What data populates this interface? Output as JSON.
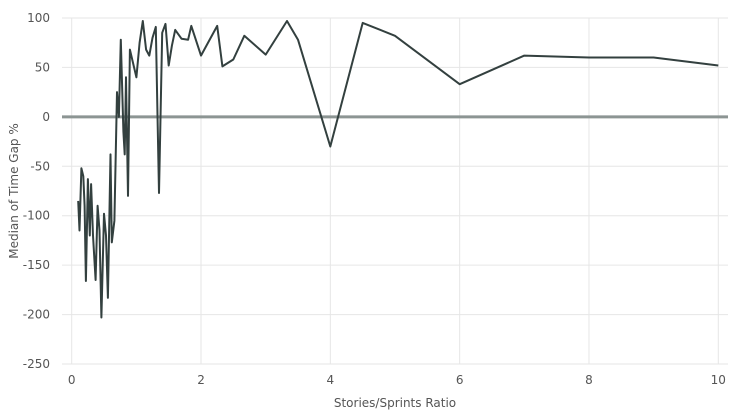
{
  "chart_data": {
    "type": "line",
    "xlabel": "Stories/Sprints Ratio",
    "ylabel": "Median of Time Gap %",
    "xlim": [
      -0.15,
      10.15
    ],
    "ylim": [
      -250,
      100
    ],
    "x_ticks": [
      0,
      2,
      4,
      6,
      8,
      10
    ],
    "y_ticks": [
      100,
      50,
      0,
      -50,
      -100,
      -150,
      -200,
      -250
    ],
    "x_tick_labels": [
      "0",
      "2",
      "4",
      "6",
      "8",
      "10"
    ],
    "y_tick_labels": [
      "100",
      "50",
      "0",
      "-50",
      "-100",
      "-150",
      "-200",
      "-250"
    ],
    "reference_line_y": 0,
    "grid": true,
    "colors": {
      "series": "#33403f",
      "zero_line": "#8c9593",
      "grid": "#e6e6e6"
    },
    "series": [
      {
        "points": [
          [
            0.1,
            -85
          ],
          [
            0.12,
            -115
          ],
          [
            0.15,
            -52
          ],
          [
            0.18,
            -60
          ],
          [
            0.2,
            -90
          ],
          [
            0.22,
            -166
          ],
          [
            0.25,
            -63
          ],
          [
            0.28,
            -120
          ],
          [
            0.3,
            -68
          ],
          [
            0.33,
            -120
          ],
          [
            0.37,
            -165
          ],
          [
            0.4,
            -90
          ],
          [
            0.43,
            -115
          ],
          [
            0.46,
            -203
          ],
          [
            0.5,
            -98
          ],
          [
            0.53,
            -120
          ],
          [
            0.56,
            -183
          ],
          [
            0.6,
            -38
          ],
          [
            0.62,
            -127
          ],
          [
            0.66,
            -105
          ],
          [
            0.7,
            25
          ],
          [
            0.73,
            0
          ],
          [
            0.76,
            78
          ],
          [
            0.8,
            -15
          ],
          [
            0.82,
            -38
          ],
          [
            0.84,
            40
          ],
          [
            0.87,
            -80
          ],
          [
            0.9,
            68
          ],
          [
            1.0,
            40
          ],
          [
            1.05,
            75
          ],
          [
            1.1,
            97
          ],
          [
            1.15,
            68
          ],
          [
            1.2,
            62
          ],
          [
            1.25,
            80
          ],
          [
            1.3,
            91
          ],
          [
            1.35,
            -77
          ],
          [
            1.4,
            85
          ],
          [
            1.45,
            94
          ],
          [
            1.5,
            52
          ],
          [
            1.55,
            72
          ],
          [
            1.6,
            88
          ],
          [
            1.7,
            79
          ],
          [
            1.8,
            78
          ],
          [
            1.85,
            92
          ],
          [
            2.0,
            62
          ],
          [
            2.25,
            92
          ],
          [
            2.33,
            51
          ],
          [
            2.5,
            58
          ],
          [
            2.67,
            82
          ],
          [
            3.0,
            63
          ],
          [
            3.33,
            97
          ],
          [
            3.5,
            78
          ],
          [
            4.0,
            -30
          ],
          [
            4.5,
            95
          ],
          [
            5.0,
            82
          ],
          [
            6.0,
            33
          ],
          [
            7.0,
            62
          ],
          [
            8.0,
            60
          ],
          [
            9.0,
            60
          ],
          [
            10.0,
            52
          ]
        ]
      }
    ]
  }
}
